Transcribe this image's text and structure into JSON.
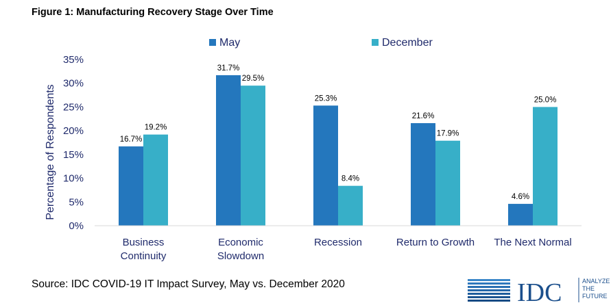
{
  "figure_title": "Figure 1: Manufacturing Recovery Stage Over Time",
  "source": "Source: IDC COVID-19 IT Impact Survey, May vs. December 2020",
  "logo": {
    "wordmark": "IDC",
    "tagline": [
      "ANALYZE",
      "THE",
      "FUTURE"
    ]
  },
  "chart_data": {
    "type": "bar",
    "title": "Figure 1: Manufacturing Recovery Stage Over Time",
    "ylabel": "Percentage of Respondents",
    "xlabel": "",
    "categories": [
      [
        "Business",
        "Continuity"
      ],
      [
        "Economic",
        "Slowdown"
      ],
      [
        "Recession"
      ],
      [
        "Return to Growth"
      ],
      [
        "The Next Normal"
      ]
    ],
    "series": [
      {
        "name": "May",
        "color": "#2477bd",
        "values": [
          16.7,
          31.7,
          25.3,
          21.6,
          4.6
        ],
        "labels": [
          "16.7%",
          "31.7%",
          "25.3%",
          "21.6%",
          "4.6%"
        ]
      },
      {
        "name": "December",
        "color": "#37afc8",
        "values": [
          19.2,
          29.5,
          8.4,
          17.9,
          25.0
        ],
        "labels": [
          "19.2%",
          "29.5%",
          "8.4%",
          "17.9%",
          "25.0%"
        ]
      }
    ],
    "ylim": [
      0,
      35
    ],
    "yticks": [
      "0%",
      "5%",
      "10%",
      "15%",
      "20%",
      "25%",
      "30%",
      "35%"
    ],
    "legend_position": "top",
    "grid": false
  }
}
